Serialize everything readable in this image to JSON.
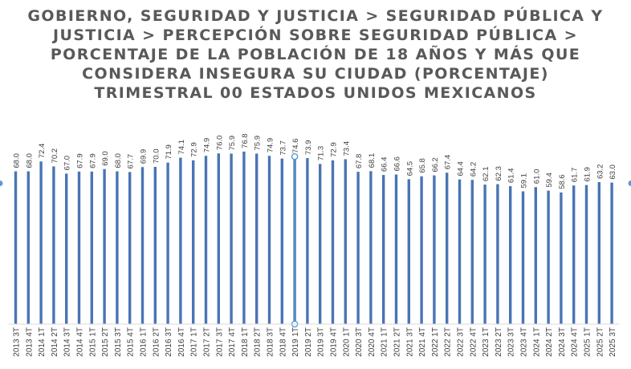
{
  "chart_data": {
    "type": "bar",
    "title_lines": [
      "GOBIERNO, SEGURIDAD Y JUSTICIA > SEGURIDAD PÚBLICA Y",
      "JUSTICIA > PERCEPCIÓN SOBRE SEGURIDAD PÚBLICA >",
      "PORCENTAJE DE LA POBLACIÓN DE 18 AÑOS Y MÁS QUE",
      "CONSIDERA INSEGURA SU CIUDAD (PORCENTAJE)",
      "TRIMESTRAL 00 ESTADOS UNIDOS MEXICANOS"
    ],
    "categories": [
      "2013 3T",
      "2013 4T",
      "2014 1T",
      "2014 2T",
      "2014 3T",
      "2014 4T",
      "2015 1T",
      "2015 2T",
      "2015 3T",
      "2015 4T",
      "2016 1T",
      "2016 2T",
      "2016 3T",
      "2016 4T",
      "2017 1T",
      "2017 2T",
      "2017 3T",
      "2017 4T",
      "2018 1T",
      "2018 2T",
      "2018 3T",
      "2018 4T",
      "2019 1T",
      "2019 2T",
      "2019 3T",
      "2019 4T",
      "2020 1T",
      "2020 3T",
      "2020 4T",
      "2021 1T",
      "2021 2T",
      "2021 3T",
      "2021 4T",
      "2022 1T",
      "2022 2T",
      "2022 3T",
      "2022 4T",
      "2023 1T",
      "2023 2T",
      "2023 3T",
      "2023 4T",
      "2024 1T",
      "2024 2T",
      "2024 3T",
      "2024 4T",
      "2025 1T",
      "2025 2T",
      "2025 3T"
    ],
    "values": [
      68.0,
      68.0,
      72.4,
      70.2,
      67.0,
      67.9,
      67.9,
      69.0,
      68.0,
      67.7,
      69.9,
      70.0,
      71.9,
      74.1,
      72.9,
      74.9,
      76.0,
      75.9,
      76.8,
      75.9,
      74.9,
      73.7,
      74.6,
      73.9,
      71.3,
      72.9,
      73.4,
      67.8,
      68.1,
      66.4,
      66.6,
      64.5,
      65.8,
      66.2,
      67.4,
      64.4,
      64.2,
      62.1,
      62.3,
      61.4,
      59.1,
      61.0,
      59.4,
      58.6,
      61.7,
      61.9,
      63.2,
      63.0
    ],
    "selected_index": 22,
    "ylim": [
      0,
      100
    ],
    "grid": false,
    "legend": "none",
    "bar_color": "#4a74b4",
    "label_color": "#404040",
    "axis_color": "#d9d9d9",
    "selection_color": "#5b9bd5"
  }
}
